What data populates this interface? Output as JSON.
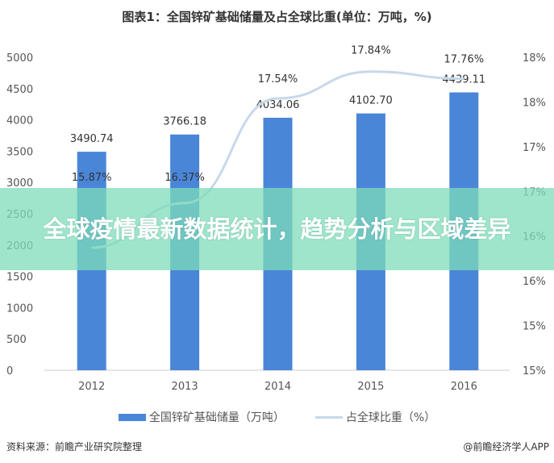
{
  "chart_data": {
    "type": "bar",
    "title": "图表1：全国锌矿基础储量及占全球比重(单位：万吨，%)",
    "categories": [
      "2012",
      "2013",
      "2014",
      "2015",
      "2016"
    ],
    "series": [
      {
        "name": "全国锌矿基础储量（万吨）",
        "type": "bar",
        "axis": "left",
        "values": [
          3490.74,
          3766.18,
          4034.06,
          4102.7,
          4439.11
        ],
        "labels": [
          "3490.74",
          "3766.18",
          "4034.06",
          "4102.70",
          "4439.11"
        ]
      },
      {
        "name": "占全球比重（%）",
        "type": "line",
        "axis": "right",
        "values": [
          15.87,
          16.37,
          17.54,
          17.84,
          17.76
        ],
        "labels": [
          "15.87%",
          "16.37%",
          "17.54%",
          "17.84%",
          "17.76%"
        ]
      }
    ],
    "ylim": [
      0,
      5000
    ],
    "yticks": [
      "0",
      "500",
      "1000",
      "1500",
      "2000",
      "2500",
      "3000",
      "3500",
      "4000",
      "4500",
      "5000"
    ],
    "y2lim": [
      14.5,
      18
    ],
    "y2ticks": [
      "15%",
      "15%",
      "16%",
      "16%",
      "17%",
      "17%",
      "18%",
      "18%"
    ],
    "legend": "bottom",
    "colors": {
      "bar": "#4a86d8",
      "line": "#c8d8ea"
    }
  },
  "footer": {
    "source": "资料来源：前瞻产业研究院整理",
    "credit": "@前瞻经济学人APP"
  },
  "banner": {
    "text": "全球疫情最新数据统计，趋势分析与区域差异"
  }
}
